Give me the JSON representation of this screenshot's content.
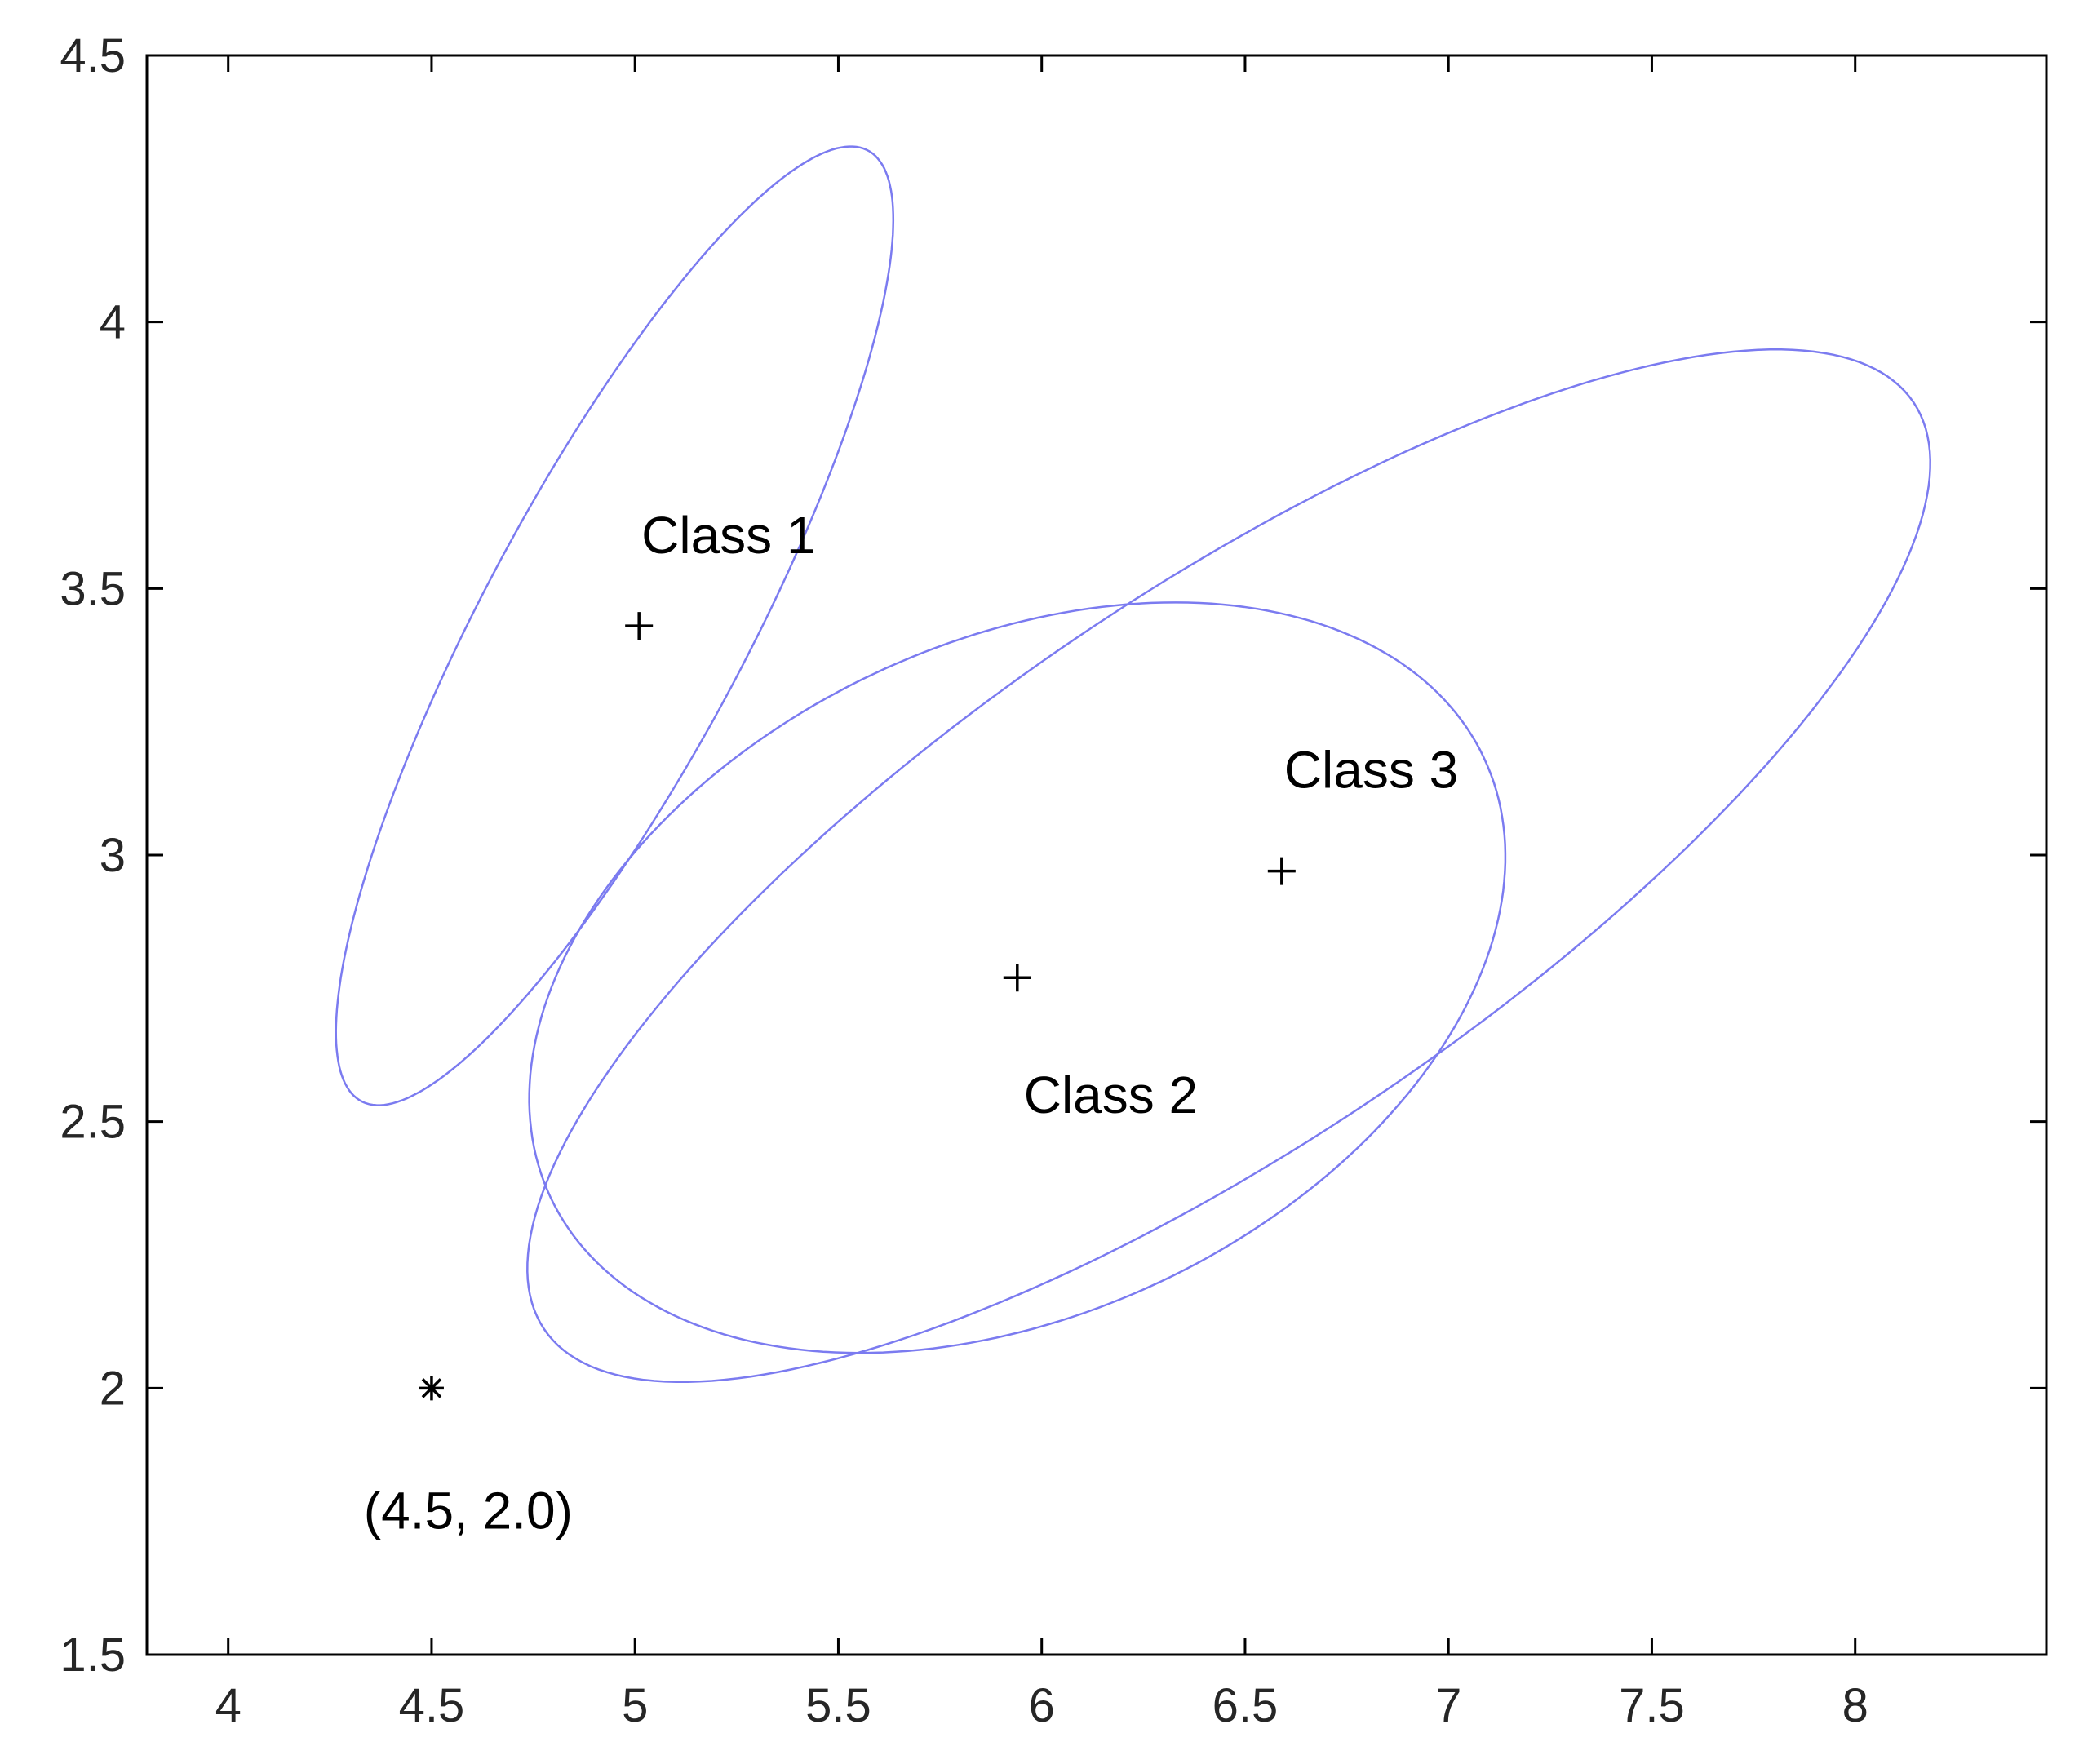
{
  "chart_data": {
    "type": "scatter",
    "title": "",
    "xlabel": "",
    "ylabel": "",
    "xlim": [
      3.8,
      8.47
    ],
    "ylim": [
      1.5,
      4.5
    ],
    "grid": false,
    "legend": "none",
    "x_ticks": [
      "4",
      "4.5",
      "5",
      "5.5",
      "6",
      "6.5",
      "7",
      "7.5",
      "8"
    ],
    "y_ticks": [
      "1.5",
      "2",
      "2.5",
      "3",
      "3.5",
      "4",
      "4.5"
    ],
    "ellipse_color": "#7b7bf0",
    "classes": [
      {
        "label": "Class 1",
        "mean": [
          5.01,
          3.43
        ],
        "ellipse": {
          "center": [
            4.95,
            3.43
          ],
          "semi_major": 1.09,
          "semi_minor": 0.3,
          "angle_deg": 54
        },
        "label_pos": [
          5.23,
          3.6
        ]
      },
      {
        "label": "Class 2",
        "mean": [
          5.94,
          2.77
        ],
        "ellipse": {
          "center": [
            5.94,
            2.77
          ],
          "semi_major": 1.23,
          "semi_minor": 0.65,
          "angle_deg": 15
        },
        "label_pos": [
          6.17,
          2.55
        ]
      },
      {
        "label": "Class 3",
        "mean": [
          6.59,
          2.97
        ],
        "ellipse": {
          "center": [
            6.46,
            2.98
          ],
          "semi_major": 1.9,
          "semi_minor": 0.55,
          "angle_deg": 26
        },
        "label_pos": [
          6.81,
          3.16
        ]
      }
    ],
    "query_point": {
      "x": 4.5,
      "y": 2.0,
      "label": "(4.5, 2.0)",
      "label_pos": [
        4.59,
        1.77
      ]
    }
  }
}
